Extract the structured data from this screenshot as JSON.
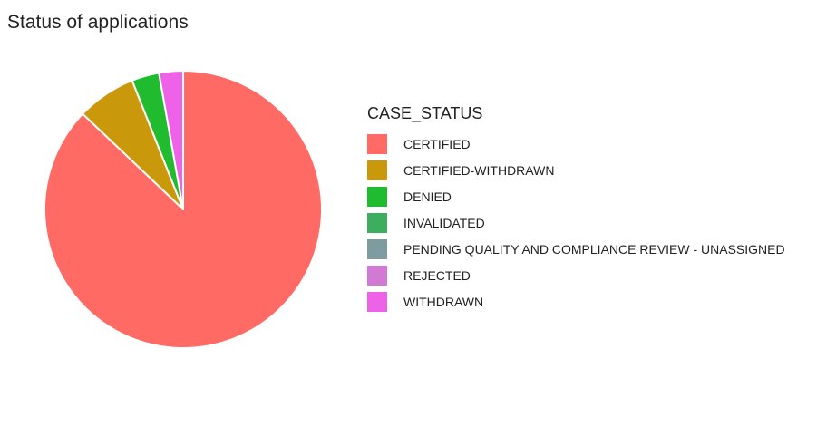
{
  "chart_data": {
    "type": "pie",
    "title": "Status of applications",
    "legend_title": "CASE_STATUS",
    "legend_position": "right",
    "categories": [
      "CERTIFIED",
      "CERTIFIED-WITHDRAWN",
      "DENIED",
      "INVALIDATED",
      "PENDING QUALITY AND COMPLIANCE REVIEW - UNASSIGNED",
      "REJECTED",
      "WITHDRAWN"
    ],
    "values": [
      87.1,
      6.9,
      3.2,
      0.0,
      0.0,
      0.0,
      2.8
    ],
    "colors": [
      "#F8766D",
      "#C49A00",
      "#53B400",
      "#00C094",
      "#00B6EB",
      "#A58AFF",
      "#FB61D7"
    ],
    "legend_colors": [
      "#FF6B64",
      "#C9980B",
      "#20BB2E",
      "#3DAE5E",
      "#7E9CA0",
      "#D17AD4",
      "#EE62E8"
    ],
    "slice_colors": [
      "#FF6B64",
      "#C9980B",
      "#20BB2E",
      "#3DAE5E",
      "#7E9CA0",
      "#D17AD4",
      "#EE62E8"
    ],
    "unit": "percent"
  }
}
